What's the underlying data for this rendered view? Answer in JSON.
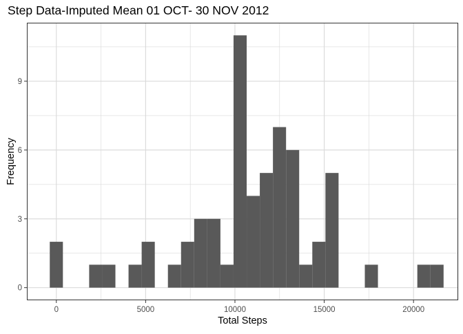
{
  "chart_data": {
    "type": "bar",
    "title": "Step Data-Imputed Mean 01 OCT- 30 NOV 2012",
    "xlabel": "Total Steps",
    "ylabel": "Frequency",
    "xlim": [
      -1650,
      22500
    ],
    "ylim": [
      -0.55,
      11.55
    ],
    "x_ticks": [
      0,
      5000,
      10000,
      15000,
      20000
    ],
    "x_tick_labels": [
      "0",
      "5000",
      "10000",
      "15000",
      "20000"
    ],
    "y_ticks": [
      0,
      3,
      6,
      9
    ],
    "y_tick_labels": [
      "0",
      "3",
      "6",
      "9"
    ],
    "bin_width": 735,
    "bin_centers": [
      0,
      735,
      1470,
      2205,
      2940,
      3675,
      4410,
      5145,
      5880,
      6615,
      7350,
      8085,
      8820,
      9555,
      10290,
      11025,
      11760,
      12495,
      13230,
      13965,
      14700,
      15435,
      16170,
      16905,
      17640,
      18375,
      19110,
      19845,
      20580,
      21315
    ],
    "values": [
      2,
      0,
      0,
      1,
      1,
      0,
      1,
      2,
      0,
      1,
      2,
      3,
      3,
      1,
      11,
      4,
      5,
      7,
      6,
      1,
      2,
      5,
      0,
      0,
      1,
      0,
      0,
      0,
      1,
      1
    ],
    "bar_color": "#595959",
    "grid": true,
    "panel_border_color": "#333333",
    "grid_color": "#d9d9d9",
    "legend": "none"
  }
}
